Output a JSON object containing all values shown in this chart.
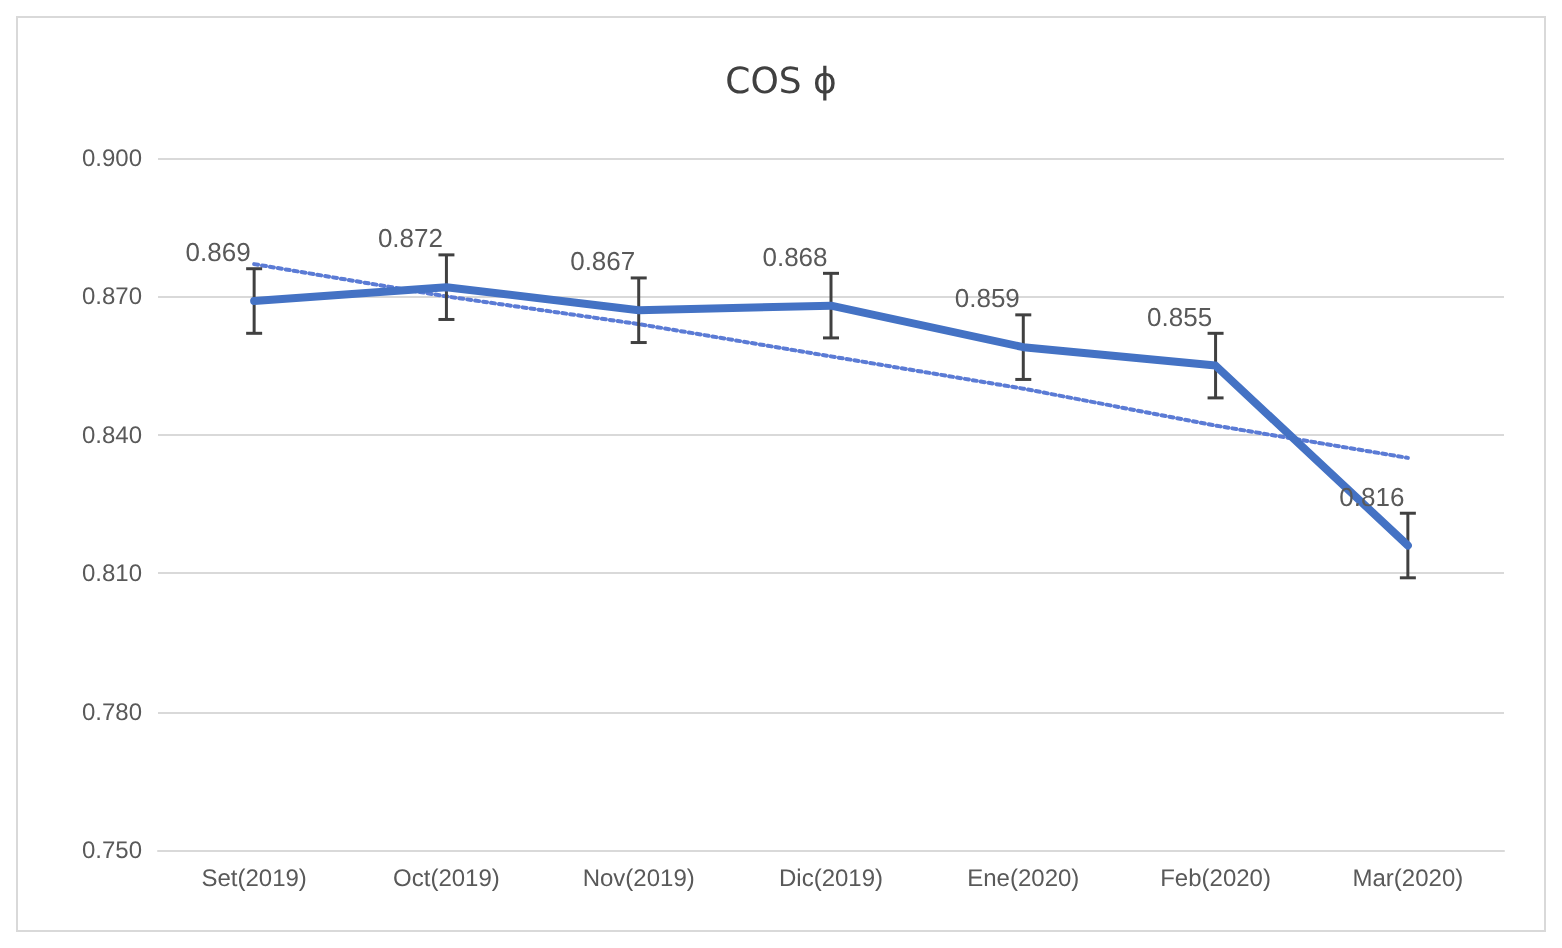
{
  "chart_data": {
    "type": "line",
    "title": "COS ϕ",
    "categories": [
      "Set(2019)",
      "Oct(2019)",
      "Nov(2019)",
      "Dic(2019)",
      "Ene(2020)",
      "Feb(2020)",
      "Mar(2020)"
    ],
    "series": [
      {
        "color": "#4472c4",
        "values": [
          0.869,
          0.872,
          0.867,
          0.868,
          0.859,
          0.855,
          0.816
        ],
        "errors": [
          0.007,
          0.007,
          0.007,
          0.007,
          0.007,
          0.007,
          0.007
        ],
        "value_labels": [
          "0.869",
          "0.872",
          "0.867",
          "0.868",
          "0.859",
          "0.855",
          "0.816"
        ]
      },
      {
        "type": "line",
        "color": "#5b7bd5",
        "line_style": "dotted",
        "values": [
          0.877,
          0.87,
          0.864,
          0.857,
          0.85,
          0.842,
          0.835
        ]
      }
    ],
    "ylim": [
      0.75,
      0.9
    ],
    "yticks": [
      {
        "value": 0.75,
        "label": "0.750"
      },
      {
        "value": 0.78,
        "label": "0.780"
      },
      {
        "value": 0.81,
        "label": "0.810"
      },
      {
        "value": 0.84,
        "label": "0.840"
      },
      {
        "value": 0.87,
        "label": "0.870"
      },
      {
        "value": 0.9,
        "label": "0.900"
      }
    ],
    "grid": "y",
    "marker": "none"
  }
}
